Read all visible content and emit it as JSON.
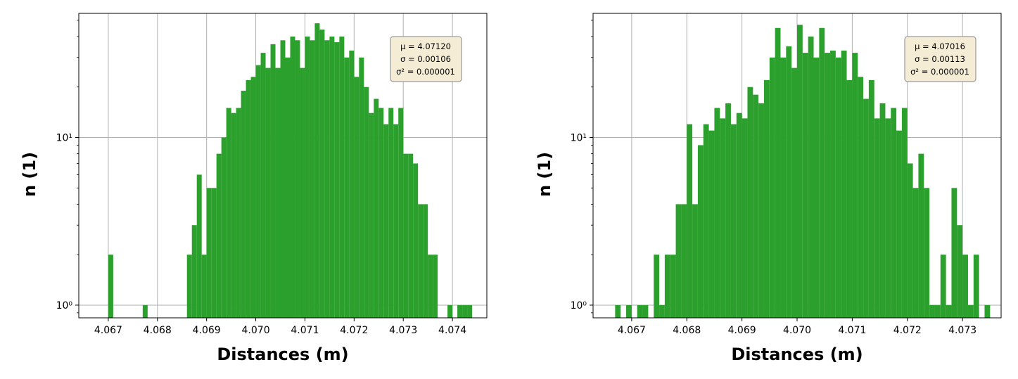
{
  "colors": {
    "bar": "#2ca02c",
    "grid": "#b0b0b0",
    "stats_box_fill": "#f5ecd6",
    "stats_box_edge": "#9a9a9a"
  },
  "chart_data": [
    {
      "type": "bar",
      "scale_y": "log",
      "grid": true,
      "xlabel": "Distances (m)",
      "ylabel": "n (1)",
      "xlim": [
        4.0664,
        4.0747
      ],
      "ylim": [
        0.84,
        55
      ],
      "x_ticks": [
        "4.067",
        "4.068",
        "4.069",
        "4.070",
        "4.071",
        "4.072",
        "4.073",
        "4.074"
      ],
      "y_ticks": [
        "10⁰",
        "10¹"
      ],
      "stats": [
        "μ = 4.07120",
        "σ = 0.00106",
        "σ² = 0.000001"
      ],
      "stats_position": "top-right",
      "bin_width": 0.0001,
      "bins": [
        {
          "x": 4.067,
          "v": 2
        },
        {
          "x": 4.0677,
          "v": 1
        },
        {
          "x": 4.0686,
          "v": 2
        },
        {
          "x": 4.0687,
          "v": 3
        },
        {
          "x": 4.0688,
          "v": 6
        },
        {
          "x": 4.0689,
          "v": 2
        },
        {
          "x": 4.069,
          "v": 5
        },
        {
          "x": 4.0691,
          "v": 5
        },
        {
          "x": 4.0692,
          "v": 8
        },
        {
          "x": 4.0693,
          "v": 10
        },
        {
          "x": 4.0694,
          "v": 15
        },
        {
          "x": 4.0695,
          "v": 14
        },
        {
          "x": 4.0696,
          "v": 15
        },
        {
          "x": 4.0697,
          "v": 19
        },
        {
          "x": 4.0698,
          "v": 22
        },
        {
          "x": 4.0699,
          "v": 23
        },
        {
          "x": 4.07,
          "v": 27
        },
        {
          "x": 4.0701,
          "v": 32
        },
        {
          "x": 4.0702,
          "v": 26
        },
        {
          "x": 4.0703,
          "v": 36
        },
        {
          "x": 4.0704,
          "v": 26
        },
        {
          "x": 4.0705,
          "v": 38
        },
        {
          "x": 4.0706,
          "v": 30
        },
        {
          "x": 4.0707,
          "v": 40
        },
        {
          "x": 4.0708,
          "v": 38
        },
        {
          "x": 4.0709,
          "v": 26
        },
        {
          "x": 4.071,
          "v": 40
        },
        {
          "x": 4.0711,
          "v": 38
        },
        {
          "x": 4.0712,
          "v": 48
        },
        {
          "x": 4.0713,
          "v": 44
        },
        {
          "x": 4.0714,
          "v": 38
        },
        {
          "x": 4.0715,
          "v": 40
        },
        {
          "x": 4.0716,
          "v": 37
        },
        {
          "x": 4.0717,
          "v": 40
        },
        {
          "x": 4.0718,
          "v": 30
        },
        {
          "x": 4.0719,
          "v": 33
        },
        {
          "x": 4.072,
          "v": 23
        },
        {
          "x": 4.0721,
          "v": 30
        },
        {
          "x": 4.0722,
          "v": 20
        },
        {
          "x": 4.0723,
          "v": 14
        },
        {
          "x": 4.0724,
          "v": 17
        },
        {
          "x": 4.0725,
          "v": 15
        },
        {
          "x": 4.0726,
          "v": 12
        },
        {
          "x": 4.0727,
          "v": 15
        },
        {
          "x": 4.0728,
          "v": 12
        },
        {
          "x": 4.0729,
          "v": 15
        },
        {
          "x": 4.073,
          "v": 8
        },
        {
          "x": 4.0731,
          "v": 8
        },
        {
          "x": 4.0732,
          "v": 7
        },
        {
          "x": 4.0733,
          "v": 4
        },
        {
          "x": 4.0734,
          "v": 4
        },
        {
          "x": 4.0735,
          "v": 2
        },
        {
          "x": 4.0736,
          "v": 2
        },
        {
          "x": 4.0739,
          "v": 1
        },
        {
          "x": 4.0741,
          "v": 1
        },
        {
          "x": 4.0742,
          "v": 1
        },
        {
          "x": 4.0743,
          "v": 1
        }
      ]
    },
    {
      "type": "bar",
      "scale_y": "log",
      "grid": true,
      "xlabel": "Distances (m)",
      "ylabel": "n (1)",
      "xlim": [
        4.0663,
        4.0737
      ],
      "ylim": [
        0.84,
        55
      ],
      "x_ticks": [
        "4.067",
        "4.068",
        "4.069",
        "4.070",
        "4.071",
        "4.072",
        "4.073"
      ],
      "y_ticks": [
        "10⁰",
        "10¹"
      ],
      "stats": [
        "μ = 4.07016",
        "σ = 0.00113",
        "σ² = 0.000001"
      ],
      "stats_position": "top-right",
      "bin_width": 0.0001,
      "bins": [
        {
          "x": 4.0667,
          "v": 1
        },
        {
          "x": 4.0669,
          "v": 1
        },
        {
          "x": 4.0671,
          "v": 1
        },
        {
          "x": 4.0672,
          "v": 1
        },
        {
          "x": 4.0674,
          "v": 2
        },
        {
          "x": 4.0675,
          "v": 1
        },
        {
          "x": 4.0676,
          "v": 2
        },
        {
          "x": 4.0677,
          "v": 2
        },
        {
          "x": 4.0678,
          "v": 4
        },
        {
          "x": 4.0679,
          "v": 4
        },
        {
          "x": 4.068,
          "v": 12
        },
        {
          "x": 4.0681,
          "v": 4
        },
        {
          "x": 4.0682,
          "v": 9
        },
        {
          "x": 4.0683,
          "v": 12
        },
        {
          "x": 4.0684,
          "v": 11
        },
        {
          "x": 4.0685,
          "v": 15
        },
        {
          "x": 4.0686,
          "v": 13
        },
        {
          "x": 4.0687,
          "v": 16
        },
        {
          "x": 4.0688,
          "v": 12
        },
        {
          "x": 4.0689,
          "v": 14
        },
        {
          "x": 4.069,
          "v": 13
        },
        {
          "x": 4.0691,
          "v": 20
        },
        {
          "x": 4.0692,
          "v": 18
        },
        {
          "x": 4.0693,
          "v": 16
        },
        {
          "x": 4.0694,
          "v": 22
        },
        {
          "x": 4.0695,
          "v": 30
        },
        {
          "x": 4.0696,
          "v": 45
        },
        {
          "x": 4.0697,
          "v": 30
        },
        {
          "x": 4.0698,
          "v": 35
        },
        {
          "x": 4.0699,
          "v": 26
        },
        {
          "x": 4.07,
          "v": 47
        },
        {
          "x": 4.0701,
          "v": 32
        },
        {
          "x": 4.0702,
          "v": 40
        },
        {
          "x": 4.0703,
          "v": 30
        },
        {
          "x": 4.0704,
          "v": 45
        },
        {
          "x": 4.0705,
          "v": 32
        },
        {
          "x": 4.0706,
          "v": 33
        },
        {
          "x": 4.0707,
          "v": 30
        },
        {
          "x": 4.0708,
          "v": 33
        },
        {
          "x": 4.0709,
          "v": 22
        },
        {
          "x": 4.071,
          "v": 32
        },
        {
          "x": 4.0711,
          "v": 23
        },
        {
          "x": 4.0712,
          "v": 17
        },
        {
          "x": 4.0713,
          "v": 22
        },
        {
          "x": 4.0714,
          "v": 13
        },
        {
          "x": 4.0715,
          "v": 16
        },
        {
          "x": 4.0716,
          "v": 13
        },
        {
          "x": 4.0717,
          "v": 15
        },
        {
          "x": 4.0718,
          "v": 11
        },
        {
          "x": 4.0719,
          "v": 15
        },
        {
          "x": 4.072,
          "v": 7
        },
        {
          "x": 4.0721,
          "v": 5
        },
        {
          "x": 4.0722,
          "v": 8
        },
        {
          "x": 4.0723,
          "v": 5
        },
        {
          "x": 4.0724,
          "v": 1
        },
        {
          "x": 4.0725,
          "v": 1
        },
        {
          "x": 4.0726,
          "v": 2
        },
        {
          "x": 4.0727,
          "v": 1
        },
        {
          "x": 4.0728,
          "v": 5
        },
        {
          "x": 4.0729,
          "v": 3
        },
        {
          "x": 4.073,
          "v": 2
        },
        {
          "x": 4.0731,
          "v": 1
        },
        {
          "x": 4.0732,
          "v": 2
        },
        {
          "x": 4.0734,
          "v": 1
        }
      ]
    }
  ]
}
